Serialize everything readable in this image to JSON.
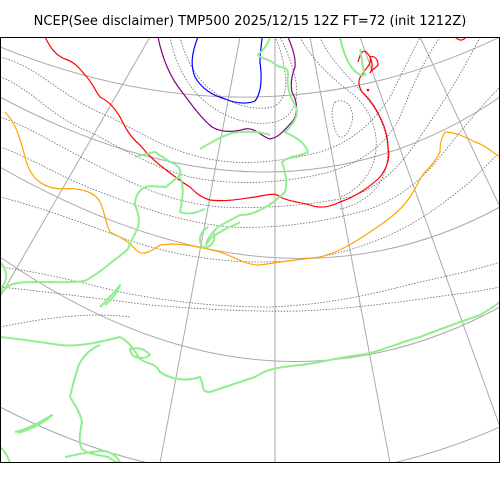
{
  "title": "NCEP(See disclaimer) TMP500 2025/12/15 12Z FT=72 (init 1212Z)",
  "map": {
    "variable": "TMP500",
    "projection": "polar-stereographic",
    "colors": {
      "coastline": "#90ee90",
      "graticule": "#aaaaaa",
      "isotherm": "#666666",
      "isotherm_orange": "#ffa500",
      "isotherm_red": "#ff0000",
      "isotherm_purple": "#800080",
      "isotherm_blue": "#0000ff",
      "frame": "#000000"
    }
  }
}
